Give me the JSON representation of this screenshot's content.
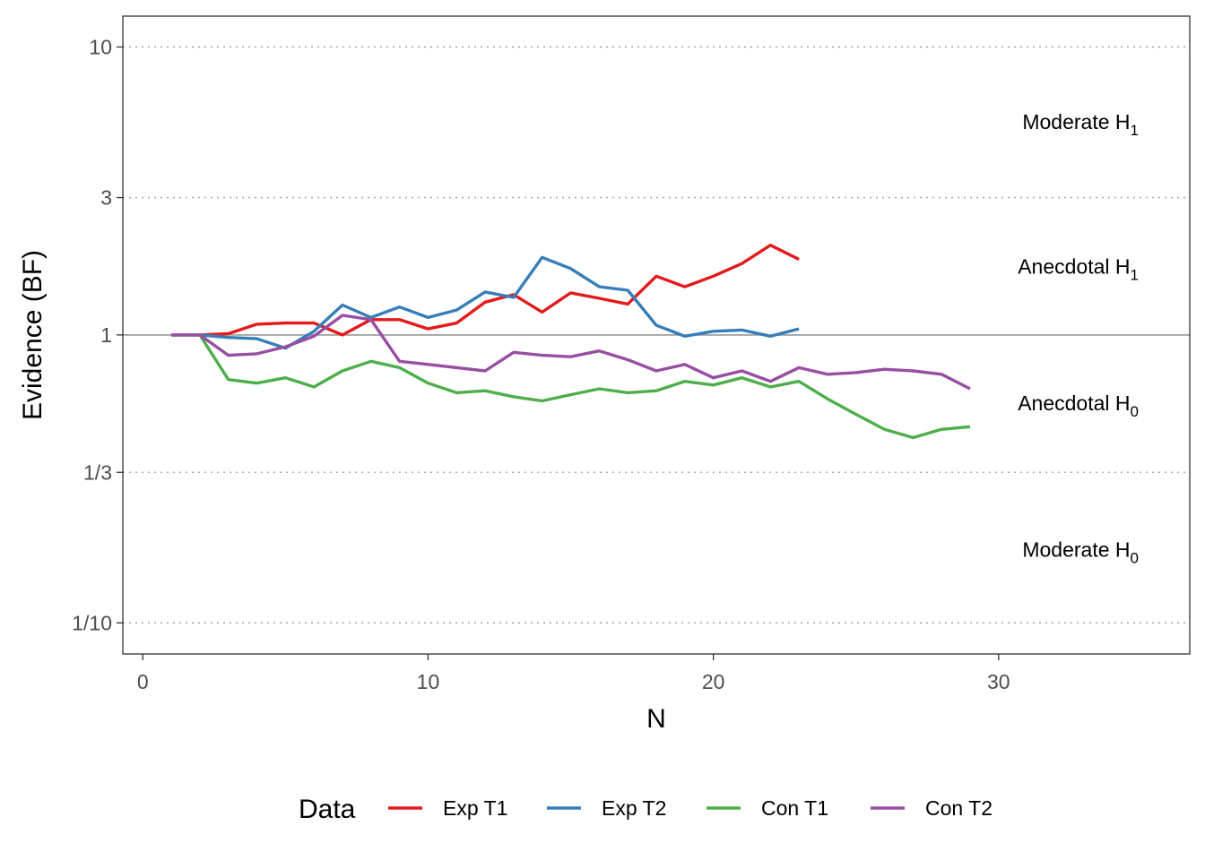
{
  "chart_data": {
    "type": "line",
    "xlabel": "N",
    "ylabel": "Evidence (BF)",
    "y_scale": "log",
    "xlim": [
      -0.7,
      36.7
    ],
    "ylim": [
      0.078,
      12.8
    ],
    "x_ticks": [
      {
        "value": 0,
        "label": "0"
      },
      {
        "value": 10,
        "label": "10"
      },
      {
        "value": 20,
        "label": "20"
      },
      {
        "value": 30,
        "label": "30"
      }
    ],
    "y_ticks": [
      {
        "value": 10,
        "label": "10"
      },
      {
        "value": 3,
        "label": "3"
      },
      {
        "value": 1,
        "label": "1"
      },
      {
        "value": 0.3333,
        "label": "1/3"
      },
      {
        "value": 0.1,
        "label": "1/10"
      }
    ],
    "grid": "dotted horizontal lines at 10, 3, 1/3 and 1/10; solid gray reference line at 1",
    "reference_line": 1,
    "region_labels": [
      {
        "text": "Moderate H",
        "subscript": "1",
        "y": 5.5
      },
      {
        "text": "Anecdotal H",
        "subscript": "1",
        "y": 1.73
      },
      {
        "text": "Anecdotal H",
        "subscript": "0",
        "y": 0.58
      },
      {
        "text": "Moderate H",
        "subscript": "0",
        "y": 0.18
      }
    ],
    "legend": {
      "title": "Data",
      "position": "bottom"
    },
    "series": [
      {
        "name": "Exp T1",
        "color": "#E41A1C",
        "x": [
          1,
          2,
          3,
          4,
          5,
          6,
          7,
          8,
          9,
          10,
          11,
          12,
          13,
          14,
          15,
          16,
          17,
          18,
          19,
          20,
          21,
          22,
          23
        ],
        "y": [
          1.0,
          1.0,
          1.01,
          1.09,
          1.1,
          1.1,
          1.0,
          1.13,
          1.13,
          1.05,
          1.1,
          1.3,
          1.38,
          1.2,
          1.4,
          1.34,
          1.28,
          1.6,
          1.47,
          1.6,
          1.77,
          2.05,
          1.83
        ]
      },
      {
        "name": "Exp T2",
        "color": "#377EB8",
        "x": [
          1,
          2,
          3,
          4,
          5,
          6,
          7,
          8,
          9,
          10,
          11,
          12,
          13,
          14,
          15,
          16,
          17,
          18,
          19,
          20,
          21,
          22,
          23
        ],
        "y": [
          1.0,
          1.0,
          0.98,
          0.97,
          0.9,
          1.03,
          1.27,
          1.15,
          1.25,
          1.15,
          1.22,
          1.41,
          1.35,
          1.86,
          1.7,
          1.47,
          1.43,
          1.08,
          0.99,
          1.03,
          1.04,
          0.99,
          1.05
        ]
      },
      {
        "name": "Con T1",
        "color": "#4DAF4A",
        "x": [
          1,
          2,
          3,
          4,
          5,
          6,
          7,
          8,
          9,
          10,
          11,
          12,
          13,
          14,
          15,
          16,
          17,
          18,
          19,
          20,
          21,
          22,
          23,
          24,
          25,
          26,
          27,
          28,
          29
        ],
        "y": [
          1.0,
          1.0,
          0.7,
          0.68,
          0.71,
          0.66,
          0.75,
          0.81,
          0.77,
          0.68,
          0.63,
          0.64,
          0.61,
          0.59,
          0.62,
          0.65,
          0.63,
          0.64,
          0.69,
          0.67,
          0.71,
          0.66,
          0.69,
          0.6,
          0.53,
          0.47,
          0.44,
          0.47,
          0.48
        ]
      },
      {
        "name": "Con T2",
        "color": "#984EA3",
        "x": [
          1,
          2,
          3,
          4,
          5,
          6,
          7,
          8,
          9,
          10,
          11,
          12,
          13,
          14,
          15,
          16,
          17,
          18,
          19,
          20,
          21,
          22,
          23,
          24,
          25,
          26,
          27,
          28,
          29
        ],
        "y": [
          1.0,
          1.0,
          0.85,
          0.86,
          0.91,
          0.99,
          1.17,
          1.13,
          0.81,
          0.79,
          0.77,
          0.75,
          0.87,
          0.85,
          0.84,
          0.88,
          0.82,
          0.75,
          0.79,
          0.71,
          0.75,
          0.69,
          0.77,
          0.73,
          0.74,
          0.76,
          0.75,
          0.73,
          0.65
        ]
      }
    ]
  }
}
